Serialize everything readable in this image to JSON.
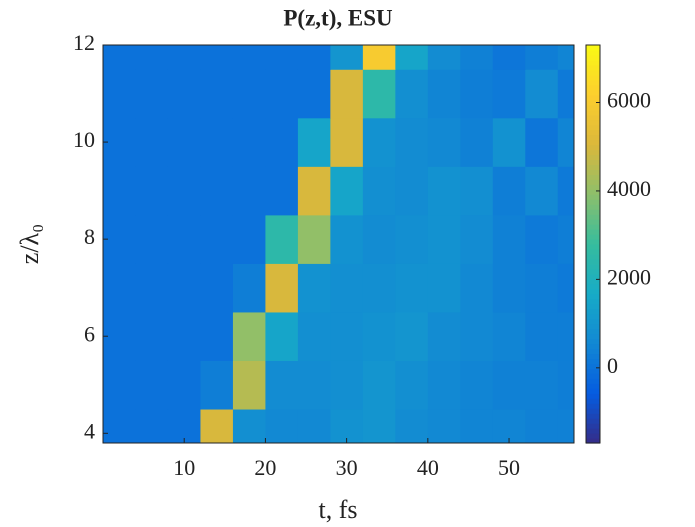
{
  "chart_data": {
    "type": "heatmap",
    "title": "P(z,t), ESU",
    "xlabel": "t, fs",
    "ylabel": "z/λ₀",
    "x": [
      2,
      6,
      10,
      14,
      18,
      22,
      26,
      30,
      34,
      38,
      42,
      46,
      50,
      54,
      58
    ],
    "y": [
      4,
      5,
      6,
      7,
      8,
      9,
      10,
      11,
      12
    ],
    "z": [
      [
        0,
        0,
        0,
        5000,
        800,
        600,
        600,
        900,
        1000,
        700,
        600,
        500,
        500,
        400,
        400
      ],
      [
        0,
        0,
        0,
        300,
        4500,
        700,
        700,
        800,
        1000,
        800,
        600,
        500,
        400,
        400,
        300
      ],
      [
        0,
        0,
        0,
        0,
        4000,
        1500,
        800,
        800,
        900,
        1000,
        700,
        600,
        500,
        300,
        300
      ],
      [
        0,
        0,
        0,
        0,
        300,
        5000,
        900,
        800,
        800,
        900,
        900,
        600,
        400,
        300,
        200
      ],
      [
        0,
        0,
        0,
        0,
        0,
        2500,
        4000,
        900,
        700,
        800,
        900,
        700,
        400,
        200,
        300
      ],
      [
        0,
        0,
        0,
        0,
        0,
        0,
        5000,
        1500,
        800,
        700,
        900,
        800,
        300,
        600,
        200
      ],
      [
        0,
        0,
        0,
        0,
        0,
        0,
        1500,
        5000,
        900,
        700,
        600,
        400,
        900,
        100,
        500
      ],
      [
        0,
        0,
        0,
        0,
        0,
        0,
        0,
        5000,
        2500,
        800,
        500,
        300,
        200,
        700,
        200
      ],
      [
        0,
        0,
        0,
        0,
        0,
        0,
        0,
        1000,
        6000,
        1500,
        700,
        400,
        100,
        300,
        500
      ]
    ],
    "xlim": [
      0,
      58
    ],
    "ylim": [
      3.8,
      12
    ],
    "xticks": [
      10,
      20,
      30,
      40,
      50
    ],
    "yticks": [
      4,
      6,
      8,
      10,
      12
    ],
    "clim": [
      -1700,
      7300
    ],
    "cticks": [
      0,
      2000,
      4000,
      6000
    ],
    "colormap": "parula"
  }
}
